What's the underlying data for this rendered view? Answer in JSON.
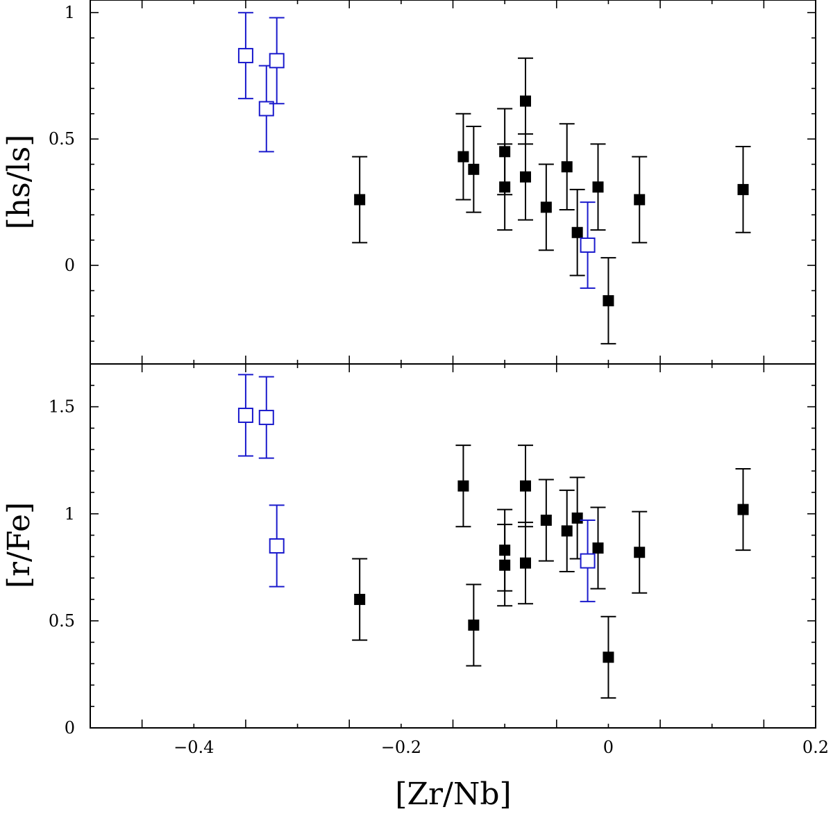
{
  "chart_data": [
    {
      "type": "scatter",
      "panel": "top",
      "ylabel": "[hs/ls]",
      "xlabel": "",
      "xlim": [
        -0.5,
        0.2
      ],
      "ylim": [
        -0.39,
        1.05
      ],
      "yticks": [
        0,
        0.5,
        1
      ],
      "ytick_labels": [
        "0",
        "0.5",
        "1"
      ],
      "series": [
        {
          "name": "filled",
          "color": "#000000",
          "marker": "filled-square",
          "points": [
            {
              "x": -0.24,
              "y": 0.26,
              "err": 0.17
            },
            {
              "x": -0.14,
              "y": 0.43,
              "err": 0.17
            },
            {
              "x": -0.13,
              "y": 0.38,
              "err": 0.17
            },
            {
              "x": -0.1,
              "y": 0.45,
              "err": 0.17
            },
            {
              "x": -0.1,
              "y": 0.31,
              "err": 0.17
            },
            {
              "x": -0.08,
              "y": 0.65,
              "err": 0.17
            },
            {
              "x": -0.08,
              "y": 0.35,
              "err": 0.17
            },
            {
              "x": -0.06,
              "y": 0.23,
              "err": 0.17
            },
            {
              "x": -0.04,
              "y": 0.39,
              "err": 0.17
            },
            {
              "x": -0.03,
              "y": 0.13,
              "err": 0.17
            },
            {
              "x": -0.01,
              "y": 0.31,
              "err": 0.17
            },
            {
              "x": 0.0,
              "y": -0.14,
              "err": 0.17
            },
            {
              "x": 0.03,
              "y": 0.26,
              "err": 0.17
            },
            {
              "x": 0.13,
              "y": 0.3,
              "err": 0.17
            }
          ]
        },
        {
          "name": "open",
          "color": "#1a1acc",
          "marker": "open-square",
          "points": [
            {
              "x": -0.35,
              "y": 0.83,
              "err": 0.17
            },
            {
              "x": -0.33,
              "y": 0.62,
              "err": 0.17
            },
            {
              "x": -0.32,
              "y": 0.81,
              "err": 0.17
            },
            {
              "x": -0.02,
              "y": 0.08,
              "err": 0.17
            }
          ]
        }
      ]
    },
    {
      "type": "scatter",
      "panel": "bottom",
      "ylabel": "[r/Fe]",
      "xlabel": "[Zr/Nb]",
      "xlim": [
        -0.5,
        0.2
      ],
      "ylim": [
        0,
        1.7
      ],
      "xticks": [
        -0.4,
        -0.2,
        0,
        0.2
      ],
      "xtick_labels": [
        "−0.4",
        "−0.2",
        "0",
        "0.2"
      ],
      "yticks": [
        0,
        0.5,
        1,
        1.5
      ],
      "ytick_labels": [
        "0",
        "0.5",
        "1",
        "1.5"
      ],
      "series": [
        {
          "name": "filled",
          "color": "#000000",
          "marker": "filled-square",
          "points": [
            {
              "x": -0.24,
              "y": 0.6,
              "err": 0.19
            },
            {
              "x": -0.14,
              "y": 1.13,
              "err": 0.19
            },
            {
              "x": -0.13,
              "y": 0.48,
              "err": 0.19
            },
            {
              "x": -0.1,
              "y": 0.83,
              "err": 0.19
            },
            {
              "x": -0.1,
              "y": 0.76,
              "err": 0.19
            },
            {
              "x": -0.08,
              "y": 1.13,
              "err": 0.19
            },
            {
              "x": -0.08,
              "y": 0.77,
              "err": 0.19
            },
            {
              "x": -0.06,
              "y": 0.97,
              "err": 0.19
            },
            {
              "x": -0.04,
              "y": 0.92,
              "err": 0.19
            },
            {
              "x": -0.03,
              "y": 0.98,
              "err": 0.19
            },
            {
              "x": -0.01,
              "y": 0.84,
              "err": 0.19
            },
            {
              "x": 0.0,
              "y": 0.33,
              "err": 0.19
            },
            {
              "x": 0.03,
              "y": 0.82,
              "err": 0.19
            },
            {
              "x": 0.13,
              "y": 1.02,
              "err": 0.19
            }
          ]
        },
        {
          "name": "open",
          "color": "#1a1acc",
          "marker": "open-square",
          "points": [
            {
              "x": -0.35,
              "y": 1.46,
              "err": 0.19
            },
            {
              "x": -0.33,
              "y": 1.45,
              "err": 0.19
            },
            {
              "x": -0.32,
              "y": 0.85,
              "err": 0.19
            },
            {
              "x": -0.02,
              "y": 0.78,
              "err": 0.19
            }
          ]
        }
      ]
    }
  ]
}
